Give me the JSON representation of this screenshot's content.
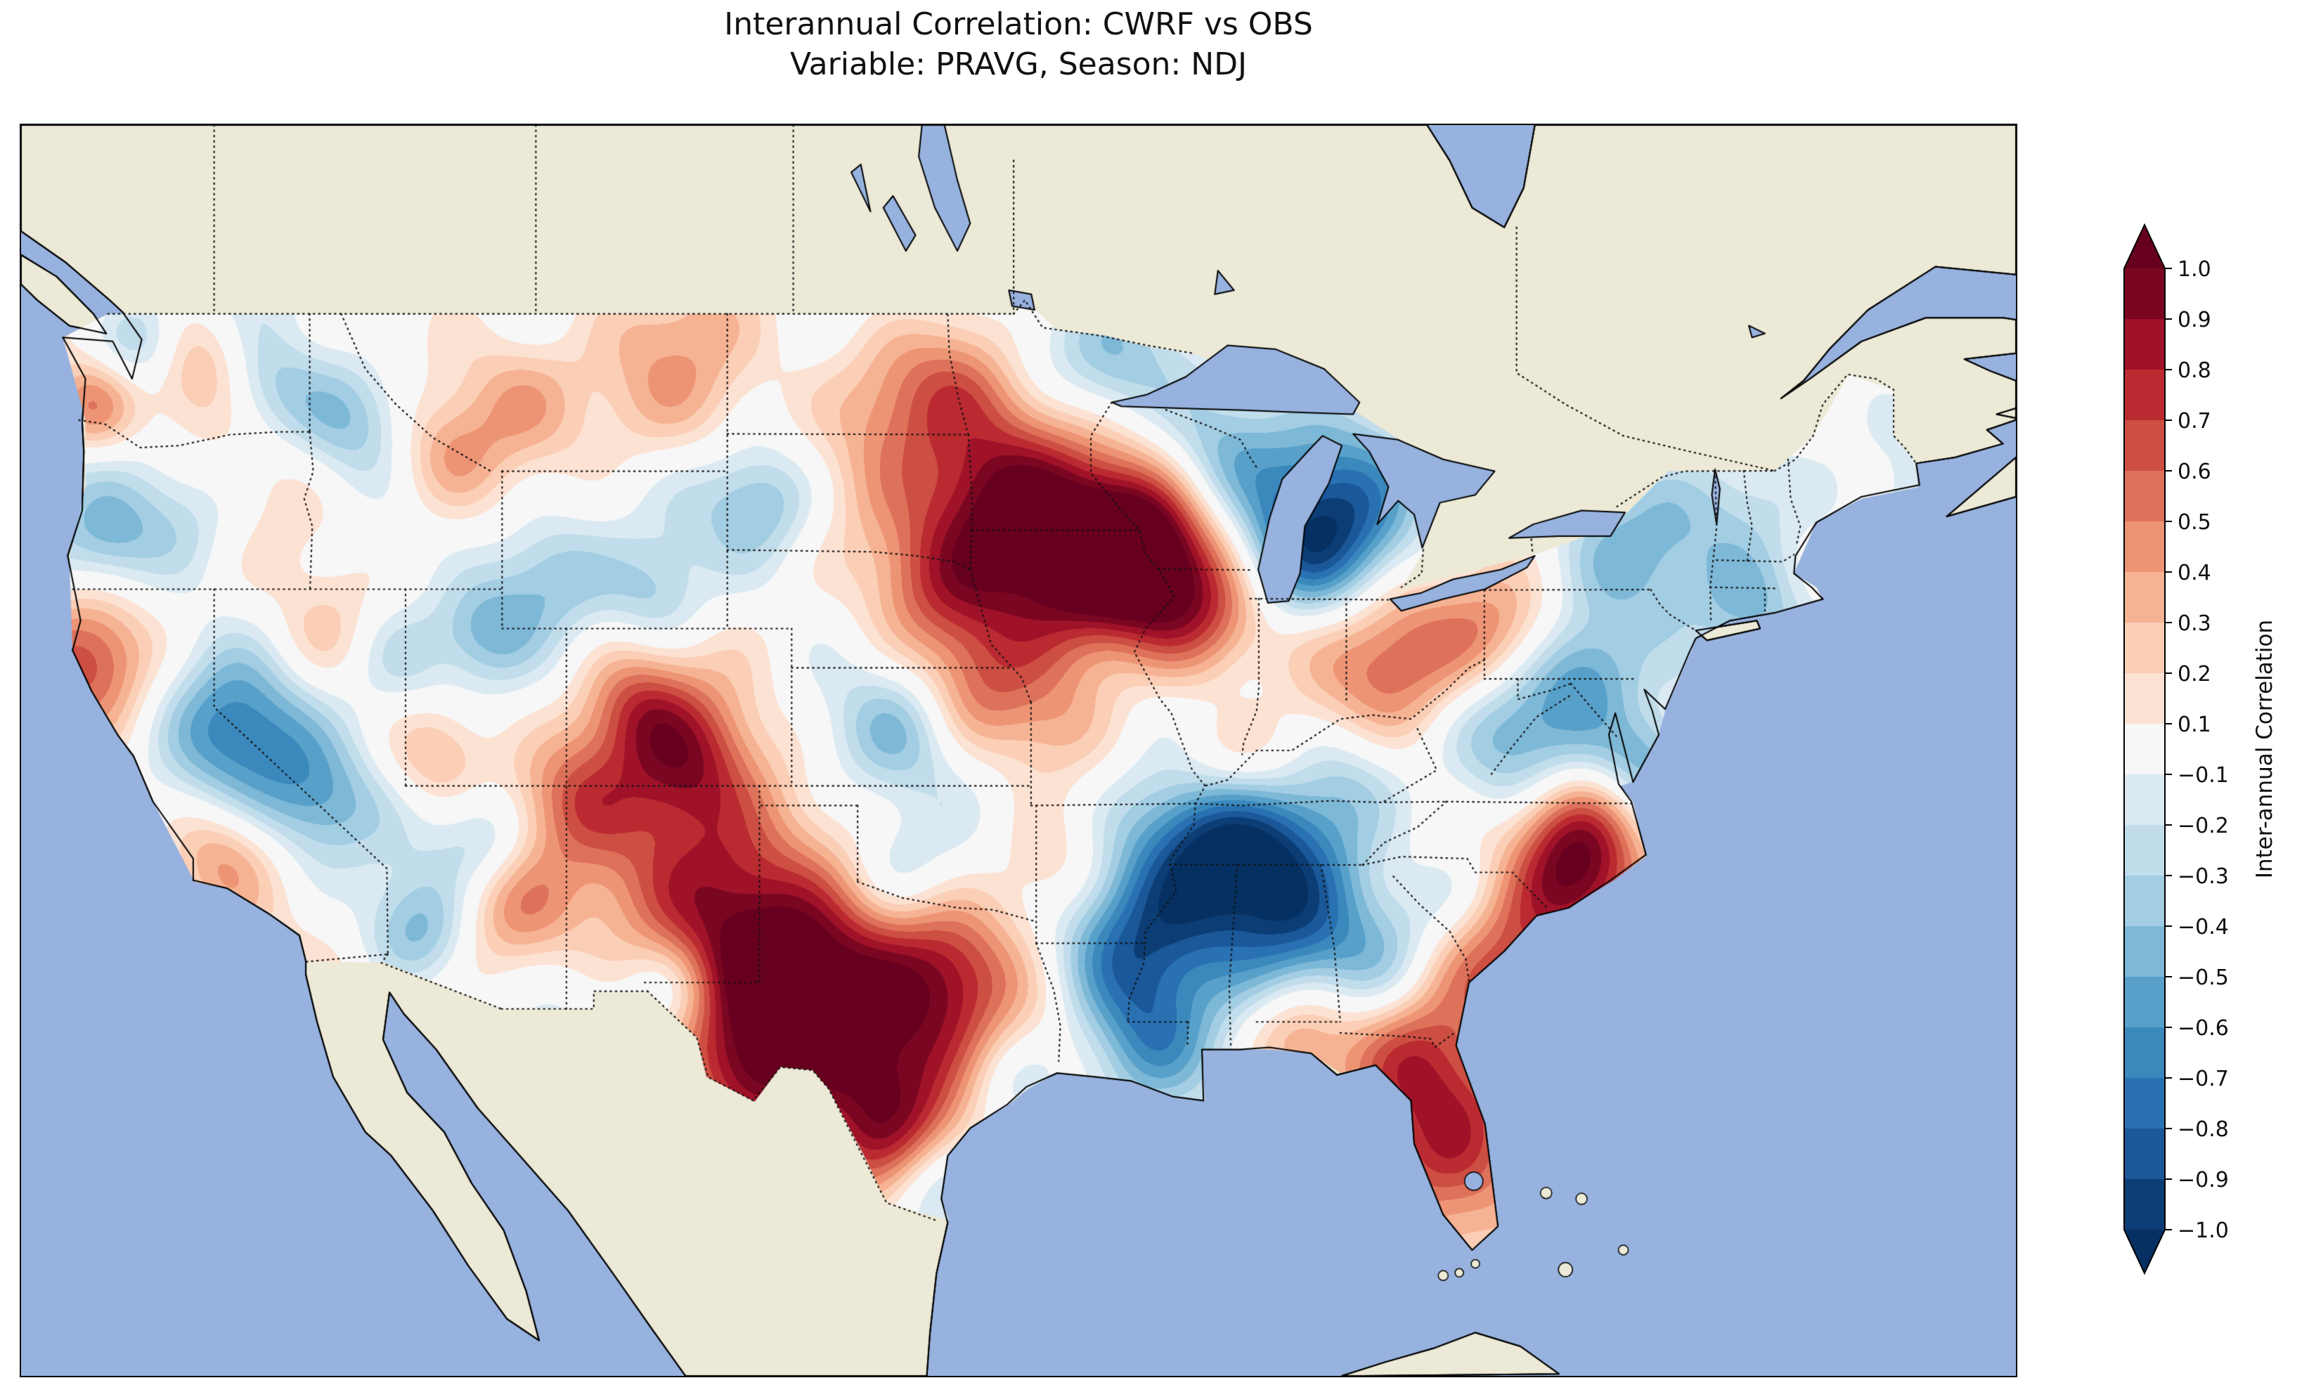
{
  "title": {
    "line1": "Interannual Correlation: CWRF vs OBS",
    "line2": "Variable: PRAVG, Season: NDJ"
  },
  "colorbar": {
    "label": "Inter-annual Correlation",
    "tick_labels": [
      "1.0",
      "0.9",
      "0.8",
      "0.7",
      "0.6",
      "0.5",
      "0.4",
      "0.3",
      "0.2",
      "0.1",
      "−0.1",
      "−0.2",
      "−0.3",
      "−0.4",
      "−0.5",
      "−0.6",
      "−0.7",
      "−0.8",
      "−0.9",
      "−1.0"
    ],
    "band_colors": [
      "#7a0622",
      "#9f1228",
      "#bb2a31",
      "#cd4e42",
      "#de715a",
      "#ed9475",
      "#f6b393",
      "#fbceb6",
      "#fce2d3",
      "#f7f7f7",
      "#dbeaf2",
      "#c1ddec",
      "#a2cde3",
      "#7eb8d7",
      "#57a0ca",
      "#3b88bd",
      "#2971b2",
      "#1a5899",
      "#0c3d74"
    ],
    "extend_over_color": "#67001f",
    "extend_under_color": "#053061"
  },
  "map": {
    "ocean_color": "#97b2de",
    "land_color": "#ece9d6",
    "lake_color": "#97b2de",
    "coast_color": "#000000"
  },
  "chart_data": {
    "type": "heatmap",
    "subtype": "filled_contour_correlation_map",
    "title": "Interannual Correlation: CWRF vs OBS",
    "subtitle": "Variable: PRAVG, Season: NDJ",
    "comparison": "CWRF vs OBS",
    "variable": "PRAVG",
    "season": "NDJ",
    "domain_mask": "Contiguous United States",
    "colormap": "RdBu_r",
    "colorbar_label": "Inter-annual Correlation",
    "value_range": [
      -1.0,
      1.0
    ],
    "levels": [
      -1.0,
      -0.9,
      -0.8,
      -0.7,
      -0.6,
      -0.5,
      -0.4,
      -0.3,
      -0.2,
      -0.1,
      0.1,
      0.2,
      0.3,
      0.4,
      0.5,
      0.6,
      0.7,
      0.8,
      0.9,
      1.0
    ],
    "features": [
      {
        "region": "Iowa-S Minnesota core",
        "lon": -93.6,
        "lat": 42.8,
        "corr": 0.9,
        "radius_deg": 2.4
      },
      {
        "region": "NE Iowa-SW Wisconsin",
        "lon": -91.3,
        "lat": 42.9,
        "corr": 0.85,
        "radius_deg": 1.6
      },
      {
        "region": "S Minnesota",
        "lon": -95.5,
        "lat": 44.3,
        "corr": 0.55,
        "radius_deg": 1.8
      },
      {
        "region": "N Illinois",
        "lon": -89.3,
        "lat": 41.4,
        "corr": 0.55,
        "radius_deg": 1.5
      },
      {
        "region": "E Nebraska",
        "lon": -97.6,
        "lat": 41.8,
        "corr": 0.45,
        "radius_deg": 1.6
      },
      {
        "region": "E North Dakota",
        "lon": -98.5,
        "lat": 47.0,
        "corr": 0.45,
        "radius_deg": 1.8
      },
      {
        "region": "NW Minnesota",
        "lon": -96.0,
        "lat": 47.6,
        "corr": 0.3,
        "radius_deg": 1.3
      },
      {
        "region": "E Montana",
        "lon": -106.0,
        "lat": 47.0,
        "corr": 0.45,
        "radius_deg": 2.0
      },
      {
        "region": "C Montana",
        "lon": -110.5,
        "lat": 46.8,
        "corr": 0.4,
        "radius_deg": 1.5
      },
      {
        "region": "SW Montana",
        "lon": -112.8,
        "lat": 45.4,
        "corr": 0.35,
        "radius_deg": 1.2
      },
      {
        "region": "C Washington",
        "lon": -120.3,
        "lat": 47.6,
        "corr": 0.45,
        "radius_deg": 1.3
      },
      {
        "region": "SW Washington coast",
        "lon": -123.9,
        "lat": 46.6,
        "corr": 0.5,
        "radius_deg": 1.0
      },
      {
        "region": "NW California coast",
        "lon": -123.9,
        "lat": 40.3,
        "corr": 0.55,
        "radius_deg": 1.4
      },
      {
        "region": "E New Mexico core",
        "lon": -104.8,
        "lat": 34.3,
        "corr": 0.85,
        "radius_deg": 2.3
      },
      {
        "region": "W Texas core",
        "lon": -102.4,
        "lat": 32.0,
        "corr": 0.85,
        "radius_deg": 2.0
      },
      {
        "region": "C Texas",
        "lon": -99.8,
        "lat": 30.8,
        "corr": 0.7,
        "radius_deg": 2.2
      },
      {
        "region": "S Texas",
        "lon": -99.0,
        "lat": 28.2,
        "corr": 0.7,
        "radius_deg": 1.8
      },
      {
        "region": "Big Bend Texas",
        "lon": -103.4,
        "lat": 29.6,
        "corr": 0.55,
        "radius_deg": 1.4
      },
      {
        "region": "NE-C Texas",
        "lon": -97.0,
        "lat": 32.4,
        "corr": 0.5,
        "radius_deg": 1.5
      },
      {
        "region": "S Colorado",
        "lon": -105.3,
        "lat": 37.6,
        "corr": 0.5,
        "radius_deg": 1.4
      },
      {
        "region": "C Colorado",
        "lon": -106.9,
        "lat": 39.0,
        "corr": 0.45,
        "radius_deg": 1.2
      },
      {
        "region": "Four Corners",
        "lon": -108.8,
        "lat": 36.8,
        "corr": 0.45,
        "radius_deg": 1.4
      },
      {
        "region": "E Arizona",
        "lon": -110.8,
        "lat": 33.8,
        "corr": 0.4,
        "radius_deg": 1.4
      },
      {
        "region": "SW Utah",
        "lon": -113.1,
        "lat": 37.8,
        "corr": 0.35,
        "radius_deg": 1.1
      },
      {
        "region": "N Nevada",
        "lon": -116.5,
        "lat": 40.8,
        "corr": 0.3,
        "radius_deg": 1.4
      },
      {
        "region": "S central California",
        "lon": -119.8,
        "lat": 35.3,
        "corr": 0.35,
        "radius_deg": 1.2
      },
      {
        "region": "W Kentucky-S Illinois",
        "lon": -88.3,
        "lat": 37.7,
        "corr": 0.45,
        "radius_deg": 1.4
      },
      {
        "region": "C Ohio",
        "lon": -83.0,
        "lat": 40.3,
        "corr": 0.55,
        "radius_deg": 1.7
      },
      {
        "region": "W Pennsylvania",
        "lon": -80.0,
        "lat": 40.9,
        "corr": 0.45,
        "radius_deg": 1.4
      },
      {
        "region": "NE North Carolina",
        "lon": -77.8,
        "lat": 36.1,
        "corr": 0.5,
        "radius_deg": 1.3
      },
      {
        "region": "Coastal Carolinas core",
        "lon": -77.4,
        "lat": 34.7,
        "corr": 0.85,
        "radius_deg": 1.5
      },
      {
        "region": "Coastal SC-GA",
        "lon": -80.3,
        "lat": 32.6,
        "corr": 0.65,
        "radius_deg": 1.7
      },
      {
        "region": "C Florida peninsula",
        "lon": -81.6,
        "lat": 28.3,
        "corr": 0.8,
        "radius_deg": 2.0
      },
      {
        "region": "N Florida-S Georgia",
        "lon": -82.8,
        "lat": 30.3,
        "corr": 0.5,
        "radius_deg": 1.4
      },
      {
        "region": "FL panhandle coast",
        "lon": -86.3,
        "lat": 30.7,
        "corr": 0.45,
        "radius_deg": 1.2
      },
      {
        "region": "W Arkansas",
        "lon": -94.0,
        "lat": 35.0,
        "corr": 0.35,
        "radius_deg": 1.4
      },
      {
        "region": "E Kansas",
        "lon": -96.3,
        "lat": 39.3,
        "corr": 0.4,
        "radius_deg": 1.4
      },
      {
        "region": "W Missouri",
        "lon": -93.8,
        "lat": 38.3,
        "corr": 0.3,
        "radius_deg": 1.4
      },
      {
        "region": "N Mississippi core",
        "lon": -89.8,
        "lat": 34.3,
        "corr": -0.7,
        "radius_deg": 2.0
      },
      {
        "region": "W Tennessee",
        "lon": -88.8,
        "lat": 35.9,
        "corr": -0.6,
        "radius_deg": 1.6
      },
      {
        "region": "NE Louisiana-SE Arkansas",
        "lon": -91.8,
        "lat": 32.8,
        "corr": -0.55,
        "radius_deg": 1.6
      },
      {
        "region": "S Louisiana",
        "lon": -91.0,
        "lat": 30.6,
        "corr": -0.45,
        "radius_deg": 1.4
      },
      {
        "region": "C Tennessee-N Alabama",
        "lon": -86.8,
        "lat": 35.2,
        "corr": -0.5,
        "radius_deg": 1.6
      },
      {
        "region": "C Alabama",
        "lon": -86.4,
        "lat": 33.2,
        "corr": -0.35,
        "radius_deg": 1.4
      },
      {
        "region": "E Kentucky",
        "lon": -84.8,
        "lat": 37.2,
        "corr": -0.4,
        "radius_deg": 1.4
      },
      {
        "region": "C Michigan",
        "lon": -84.8,
        "lat": 44.0,
        "corr": -0.55,
        "radius_deg": 1.7
      },
      {
        "region": "SW Michigan",
        "lon": -86.3,
        "lat": 42.8,
        "corr": -0.5,
        "radius_deg": 1.4
      },
      {
        "region": "NE Wisconsin",
        "lon": -88.8,
        "lat": 45.4,
        "corr": -0.4,
        "radius_deg": 1.4
      },
      {
        "region": "NE Minnesota",
        "lon": -92.3,
        "lat": 47.6,
        "corr": -0.4,
        "radius_deg": 1.5
      },
      {
        "region": "SE Illinois-SW Indiana",
        "lon": -87.9,
        "lat": 38.9,
        "corr": -0.3,
        "radius_deg": 1.3
      },
      {
        "region": "Upstate New York",
        "lon": -75.8,
        "lat": 42.9,
        "corr": -0.45,
        "radius_deg": 1.9
      },
      {
        "region": "N New England",
        "lon": -72.3,
        "lat": 44.2,
        "corr": -0.4,
        "radius_deg": 1.7
      },
      {
        "region": "S New England",
        "lon": -72.2,
        "lat": 41.6,
        "corr": -0.3,
        "radius_deg": 1.1
      },
      {
        "region": "W Virginia-Appalachia",
        "lon": -79.3,
        "lat": 38.3,
        "corr": -0.5,
        "radius_deg": 1.7
      },
      {
        "region": "Maryland-S Pennsylvania",
        "lon": -77.3,
        "lat": 39.9,
        "corr": -0.4,
        "radius_deg": 1.2
      },
      {
        "region": "Inland South Carolina",
        "lon": -81.3,
        "lat": 34.1,
        "corr": -0.35,
        "radius_deg": 1.3
      },
      {
        "region": "C Georgia",
        "lon": -83.6,
        "lat": 32.6,
        "corr": -0.3,
        "radius_deg": 1.4
      },
      {
        "region": "Sierra Nevada",
        "lon": -119.3,
        "lat": 38.3,
        "corr": -0.5,
        "radius_deg": 1.6
      },
      {
        "region": "S Nevada",
        "lon": -116.8,
        "lat": 36.6,
        "corr": -0.4,
        "radius_deg": 1.3
      },
      {
        "region": "SW Arizona",
        "lon": -113.6,
        "lat": 33.3,
        "corr": -0.45,
        "radius_deg": 1.2
      },
      {
        "region": "N Arizona",
        "lon": -111.6,
        "lat": 35.6,
        "corr": -0.35,
        "radius_deg": 1.1
      },
      {
        "region": "NE Nevada",
        "lon": -114.3,
        "lat": 40.3,
        "corr": -0.3,
        "radius_deg": 1.2
      },
      {
        "region": "N Utah",
        "lon": -111.6,
        "lat": 40.9,
        "corr": -0.4,
        "radius_deg": 1.1
      },
      {
        "region": "SW Wyoming",
        "lon": -109.6,
        "lat": 42.3,
        "corr": -0.4,
        "radius_deg": 1.3
      },
      {
        "region": "SE Wyoming",
        "lon": -106.3,
        "lat": 41.8,
        "corr": -0.3,
        "radius_deg": 1.1
      },
      {
        "region": "Idaho Panhandle-W Montana",
        "lon": -115.8,
        "lat": 46.3,
        "corr": -0.5,
        "radius_deg": 1.4
      },
      {
        "region": "E Washington",
        "lon": -118.6,
        "lat": 47.2,
        "corr": -0.4,
        "radius_deg": 1.2
      },
      {
        "region": "C Oregon",
        "lon": -120.8,
        "lat": 43.9,
        "corr": -0.35,
        "radius_deg": 1.4
      },
      {
        "region": "SW Oregon",
        "lon": -123.3,
        "lat": 43.3,
        "corr": -0.3,
        "radius_deg": 1.1
      },
      {
        "region": "NW Washington",
        "lon": -122.3,
        "lat": 48.3,
        "corr": -0.4,
        "radius_deg": 1.0
      },
      {
        "region": "W South Dakota",
        "lon": -103.0,
        "lat": 44.2,
        "corr": -0.35,
        "radius_deg": 1.2
      },
      {
        "region": "C Kansas",
        "lon": -98.6,
        "lat": 38.4,
        "corr": -0.3,
        "radius_deg": 1.3
      },
      {
        "region": "SW Oklahoma",
        "lon": -98.8,
        "lat": 34.8,
        "corr": -0.3,
        "radius_deg": 1.2
      },
      {
        "region": "S Texas coast",
        "lon": -97.6,
        "lat": 26.9,
        "corr": -0.45,
        "radius_deg": 1.1
      },
      {
        "region": "Upper Texas coast",
        "lon": -95.3,
        "lat": 29.4,
        "corr": -0.4,
        "radius_deg": 1.2
      },
      {
        "region": "Near El Paso",
        "lon": -105.8,
        "lat": 31.9,
        "corr": -0.3,
        "radius_deg": 1.0
      },
      {
        "region": "Delmarva",
        "lon": -75.6,
        "lat": 37.6,
        "corr": -0.35,
        "radius_deg": 1.0
      },
      {
        "region": "N Minnesota",
        "lon": -95.3,
        "lat": 48.0,
        "corr": -0.3,
        "radius_deg": 1.2
      }
    ]
  }
}
